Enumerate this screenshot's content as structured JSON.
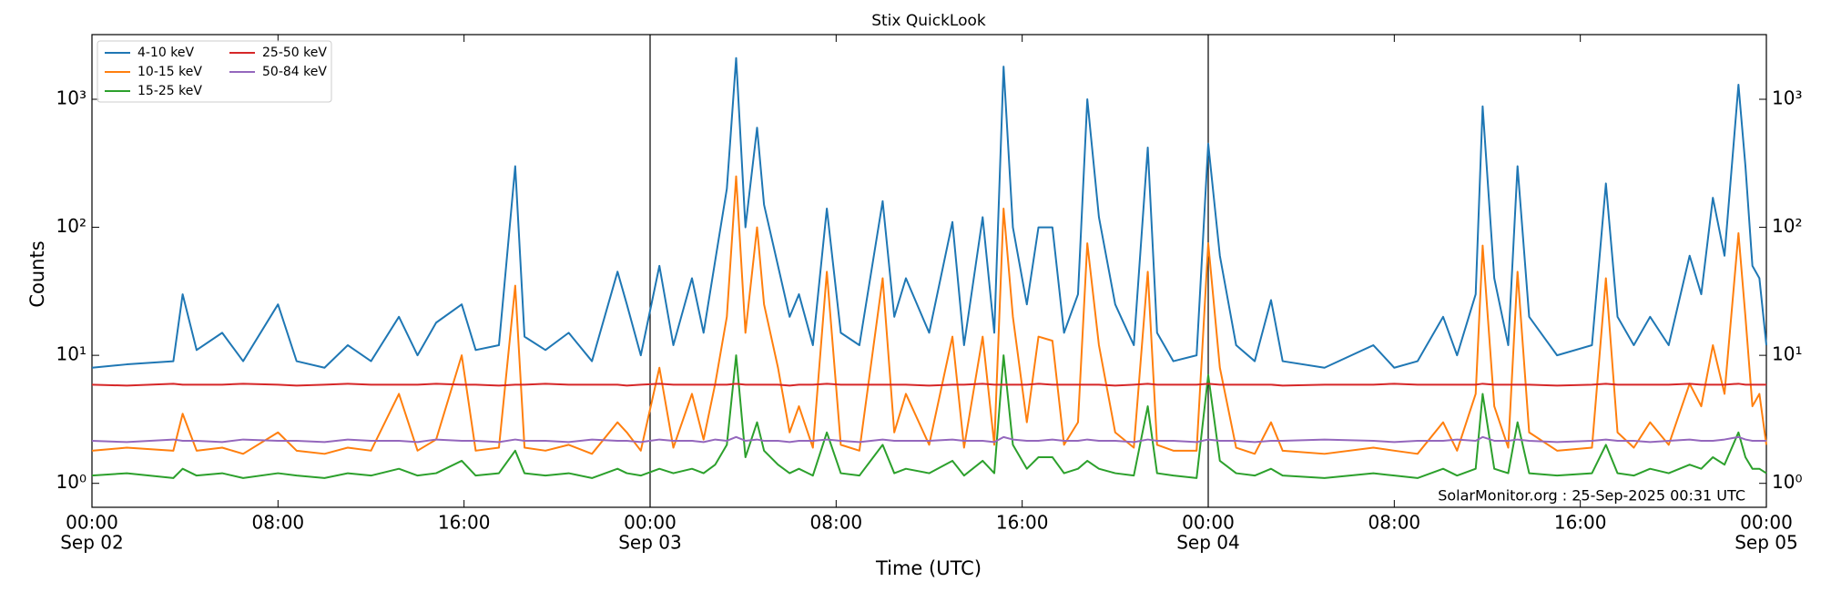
{
  "chart_data": {
    "type": "line",
    "title": "Stix QuickLook",
    "xlabel": "Time (UTC)",
    "ylabel": "Counts",
    "annotation": "SolarMonitor.org : 25-Sep-2025 00:31 UTC",
    "yscale": "log",
    "legend": "upper left",
    "legend_columns": 2,
    "xlim": [
      0,
      72
    ],
    "xticks": [
      {
        "value": 0,
        "label": "00:00"
      },
      {
        "value": 8,
        "label": "08:00"
      },
      {
        "value": 16,
        "label": "16:00"
      },
      {
        "value": 24,
        "label": "00:00"
      },
      {
        "value": 32,
        "label": "08:00"
      },
      {
        "value": 40,
        "label": "16:00"
      },
      {
        "value": 48,
        "label": "00:00"
      },
      {
        "value": 56,
        "label": "08:00"
      },
      {
        "value": 64,
        "label": "16:00"
      },
      {
        "value": 72,
        "label": "00:00"
      }
    ],
    "xdates": [
      {
        "value": 0,
        "label": "Sep 02"
      },
      {
        "value": 24,
        "label": "Sep 03"
      },
      {
        "value": 48,
        "label": "Sep 04"
      },
      {
        "value": 72,
        "label": "Sep 05"
      }
    ],
    "ylim": [
      0.65,
      3200
    ],
    "yticks": [
      {
        "value": 1,
        "label": "10⁰"
      },
      {
        "value": 10,
        "label": "10¹"
      },
      {
        "value": 100,
        "label": "10²"
      },
      {
        "value": 1000,
        "label": "10³"
      }
    ],
    "x": [
      0,
      1.5,
      3.5,
      3.9,
      4.5,
      5.6,
      6.5,
      8.0,
      8.8,
      10.0,
      11.0,
      12.0,
      13.2,
      14.0,
      14.8,
      15.9,
      16.5,
      17.5,
      18.2,
      18.6,
      19.5,
      20.5,
      21.5,
      22.6,
      23.0,
      23.6,
      24.4,
      25.0,
      25.8,
      26.3,
      26.8,
      27.3,
      27.7,
      28.1,
      28.6,
      28.9,
      29.5,
      30.0,
      30.4,
      31.0,
      31.6,
      32.2,
      33.0,
      34.0,
      34.5,
      35.0,
      36.0,
      37.0,
      37.5,
      38.3,
      38.8,
      39.2,
      39.6,
      40.2,
      40.7,
      41.3,
      41.8,
      42.4,
      42.8,
      43.3,
      44.0,
      44.8,
      45.4,
      45.8,
      46.5,
      47.5,
      48.0,
      48.5,
      49.2,
      50.0,
      50.7,
      51.2,
      53.0,
      55.1,
      56.0,
      57.0,
      58.1,
      58.7,
      59.5,
      59.8,
      60.3,
      60.9,
      61.3,
      61.8,
      63.0,
      64.5,
      65.1,
      65.6,
      66.3,
      67.0,
      67.8,
      68.7,
      69.2,
      69.7,
      70.2,
      70.8,
      71.1,
      71.4,
      71.7,
      72.0
    ],
    "series": [
      {
        "name": "4-10 keV",
        "color": "#1f77b4",
        "values": [
          8,
          8.5,
          9,
          30,
          11,
          15,
          9,
          25,
          9,
          8,
          12,
          9,
          20,
          10,
          18,
          25,
          11,
          12,
          300,
          14,
          11,
          15,
          9,
          45,
          25,
          10,
          50,
          12,
          40,
          15,
          55,
          200,
          2100,
          100,
          600,
          150,
          50,
          20,
          30,
          12,
          140,
          15,
          12,
          160,
          20,
          40,
          15,
          110,
          12,
          120,
          15,
          1800,
          100,
          25,
          100,
          100,
          15,
          30,
          1000,
          120,
          25,
          12,
          420,
          15,
          9,
          10,
          450,
          60,
          12,
          9,
          27,
          9,
          8,
          12,
          8,
          9,
          20,
          10,
          30,
          880,
          40,
          12,
          300,
          20,
          10,
          12,
          220,
          20,
          12,
          20,
          12,
          60,
          30,
          170,
          60,
          1300,
          300,
          50,
          40,
          12
        ]
      },
      {
        "name": "10-15 keV",
        "color": "#ff7f0e",
        "values": [
          1.8,
          1.9,
          1.8,
          3.5,
          1.8,
          1.9,
          1.7,
          2.5,
          1.8,
          1.7,
          1.9,
          1.8,
          5,
          1.8,
          2.2,
          10,
          1.8,
          1.9,
          35,
          1.9,
          1.8,
          2.0,
          1.7,
          3,
          2.5,
          1.8,
          8,
          1.9,
          5,
          2.2,
          6,
          20,
          250,
          15,
          100,
          25,
          8,
          2.5,
          4,
          1.9,
          45,
          2.0,
          1.8,
          40,
          2.5,
          5,
          2.0,
          14,
          1.9,
          14,
          2.0,
          140,
          20,
          3,
          14,
          13,
          2.0,
          3,
          75,
          12,
          2.5,
          1.9,
          45,
          2.0,
          1.8,
          1.8,
          75,
          8,
          1.9,
          1.7,
          3,
          1.8,
          1.7,
          1.9,
          1.8,
          1.7,
          3,
          1.8,
          5,
          72,
          4,
          1.9,
          45,
          2.5,
          1.8,
          1.9,
          40,
          2.5,
          1.9,
          3,
          2.0,
          6,
          4,
          12,
          5,
          90,
          20,
          4,
          5,
          2.0
        ]
      },
      {
        "name": "15-25 keV",
        "color": "#2ca02c",
        "values": [
          1.15,
          1.2,
          1.1,
          1.3,
          1.15,
          1.2,
          1.1,
          1.2,
          1.15,
          1.1,
          1.2,
          1.15,
          1.3,
          1.15,
          1.2,
          1.5,
          1.15,
          1.2,
          1.8,
          1.2,
          1.15,
          1.2,
          1.1,
          1.3,
          1.2,
          1.15,
          1.3,
          1.2,
          1.3,
          1.2,
          1.4,
          2,
          10,
          1.6,
          3,
          1.8,
          1.4,
          1.2,
          1.3,
          1.15,
          2.5,
          1.2,
          1.15,
          2,
          1.2,
          1.3,
          1.2,
          1.5,
          1.15,
          1.5,
          1.2,
          10,
          2,
          1.3,
          1.6,
          1.6,
          1.2,
          1.3,
          1.5,
          1.3,
          1.2,
          1.15,
          4,
          1.2,
          1.15,
          1.1,
          7,
          1.5,
          1.2,
          1.15,
          1.3,
          1.15,
          1.1,
          1.2,
          1.15,
          1.1,
          1.3,
          1.15,
          1.3,
          5,
          1.3,
          1.2,
          3,
          1.2,
          1.15,
          1.2,
          2,
          1.2,
          1.15,
          1.3,
          1.2,
          1.4,
          1.3,
          1.6,
          1.4,
          2.5,
          1.6,
          1.3,
          1.3,
          1.2
        ]
      },
      {
        "name": "25-50 keV",
        "color": "#d62728",
        "values": [
          5.9,
          5.8,
          6.0,
          5.9,
          5.9,
          5.9,
          6.0,
          5.9,
          5.8,
          5.9,
          6.0,
          5.9,
          5.9,
          5.9,
          6.0,
          5.9,
          5.9,
          5.8,
          5.9,
          5.9,
          6.0,
          5.9,
          5.9,
          5.9,
          5.8,
          5.9,
          6.0,
          5.9,
          5.9,
          5.9,
          5.9,
          5.9,
          6.0,
          5.9,
          5.9,
          5.9,
          5.9,
          5.8,
          5.9,
          5.9,
          6.0,
          5.9,
          5.9,
          5.9,
          5.9,
          5.9,
          5.8,
          5.9,
          5.9,
          6.0,
          5.9,
          5.9,
          5.9,
          5.9,
          6.0,
          5.9,
          5.9,
          5.9,
          5.9,
          5.9,
          5.8,
          5.9,
          6.0,
          5.9,
          5.9,
          5.9,
          6.0,
          5.9,
          5.9,
          5.9,
          5.9,
          5.8,
          5.9,
          5.9,
          6.0,
          5.9,
          5.9,
          5.9,
          5.9,
          6.0,
          5.9,
          5.9,
          5.9,
          5.9,
          5.8,
          5.9,
          6.0,
          5.9,
          5.9,
          5.9,
          5.9,
          6.0,
          5.9,
          5.9,
          5.9,
          6.0,
          5.9,
          5.9,
          5.9,
          5.9
        ]
      },
      {
        "name": "50-84 keV",
        "color": "#9467bd",
        "values": [
          2.15,
          2.1,
          2.2,
          2.15,
          2.15,
          2.1,
          2.2,
          2.15,
          2.15,
          2.1,
          2.2,
          2.15,
          2.15,
          2.1,
          2.2,
          2.15,
          2.15,
          2.1,
          2.2,
          2.15,
          2.15,
          2.1,
          2.2,
          2.15,
          2.15,
          2.1,
          2.2,
          2.15,
          2.15,
          2.1,
          2.2,
          2.15,
          2.3,
          2.15,
          2.2,
          2.15,
          2.15,
          2.1,
          2.15,
          2.15,
          2.2,
          2.15,
          2.1,
          2.2,
          2.15,
          2.15,
          2.15,
          2.2,
          2.15,
          2.15,
          2.1,
          2.3,
          2.2,
          2.15,
          2.15,
          2.2,
          2.15,
          2.15,
          2.2,
          2.15,
          2.15,
          2.1,
          2.2,
          2.15,
          2.15,
          2.1,
          2.2,
          2.15,
          2.15,
          2.1,
          2.15,
          2.15,
          2.2,
          2.15,
          2.1,
          2.15,
          2.15,
          2.2,
          2.15,
          2.3,
          2.15,
          2.15,
          2.2,
          2.15,
          2.1,
          2.15,
          2.2,
          2.15,
          2.15,
          2.1,
          2.15,
          2.2,
          2.15,
          2.15,
          2.2,
          2.3,
          2.2,
          2.15,
          2.15,
          2.15
        ]
      }
    ]
  }
}
